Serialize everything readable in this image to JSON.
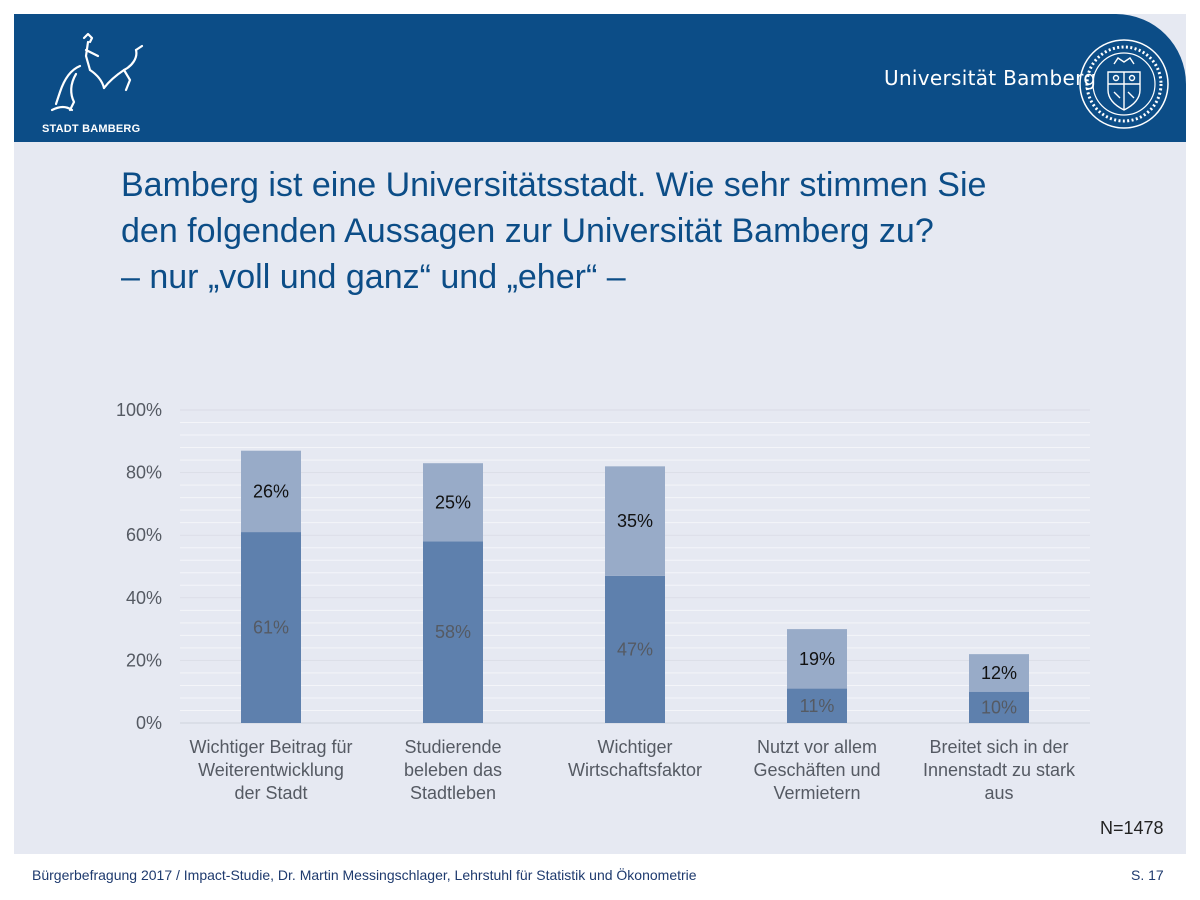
{
  "header": {
    "city_name": "STADT BAMBERG",
    "university_name": "Universität Bamberg"
  },
  "colors": {
    "header_bg": "#0c4d87",
    "slide_bg": "#e6e9f2",
    "title": "#0c4d87",
    "bar_voll_und_ganz": "#5e80ad",
    "bar_eher": "#98abc8"
  },
  "title": {
    "line1": "Bamberg ist eine Universitätsstadt. Wie sehr stimmen Sie",
    "line2": "den folgenden Aussagen zur Universität Bamberg zu?",
    "line3": "– nur „voll und ganz“ und „eher“ –"
  },
  "chart_data": {
    "type": "bar",
    "stacked": true,
    "categories": [
      [
        "Wichtiger Beitrag für",
        "Weiterentwicklung",
        "der Stadt"
      ],
      [
        "Studierende",
        "beleben das",
        "Stadtleben"
      ],
      [
        "Wichtiger",
        "Wirtschaftsfaktor"
      ],
      [
        "Nutzt vor allem",
        "Geschäften und",
        "Vermietern"
      ],
      [
        "Breitet sich in der",
        "Innenstadt zu stark",
        "aus"
      ]
    ],
    "series": [
      {
        "values": [
          61,
          58,
          47,
          11,
          10
        ],
        "labels": [
          "61%",
          "58%",
          "47%",
          "11%",
          "10%"
        ],
        "color": "#5e80ad"
      },
      {
        "values": [
          26,
          25,
          35,
          19,
          12
        ],
        "labels": [
          "26%",
          "25%",
          "35%",
          "19%",
          "12%"
        ],
        "color": "#98abc8"
      }
    ],
    "yticks": [
      "0%",
      "20%",
      "40%",
      "60%",
      "80%",
      "100%"
    ],
    "ylim": [
      0,
      100
    ],
    "grid": true,
    "legend": "none"
  },
  "note": "N=1478",
  "footer": {
    "source": "Bürgerbefragung 2017 / Impact-Studie, Dr. Martin Messingschlager, Lehrstuhl für Statistik und Ökonometrie",
    "page": "S. 17"
  }
}
